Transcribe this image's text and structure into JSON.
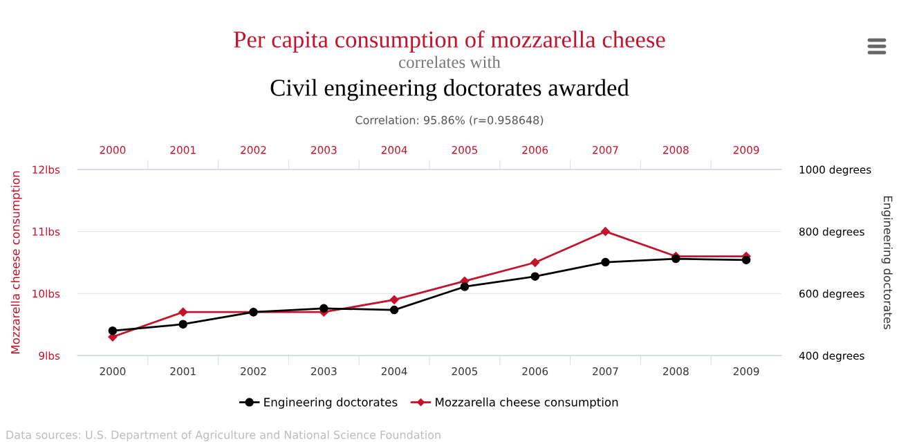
{
  "chart_data": {
    "type": "line",
    "title": "Per capita consumption of mozzarella cheese",
    "subtitle": "correlates with",
    "annotations": [
      "Civil engineering doctorates awarded",
      "Correlation: 95.86% (r=0.958648)",
      "Data sources: U.S. Department of Agriculture and National Science Foundation"
    ],
    "ylabel": "Mozzarella cheese consumption",
    "y2label": "Engineering doctorates",
    "categories": [
      "2000",
      "2001",
      "2002",
      "2003",
      "2004",
      "2005",
      "2006",
      "2007",
      "2008",
      "2009"
    ],
    "series": [
      {
        "name": "Engineering doctorates",
        "color": "#000000",
        "axis": "y2",
        "marker": "circle",
        "values": [
          480,
          501,
          540,
          552,
          547,
          622,
          655,
          701,
          712,
          708
        ]
      },
      {
        "name": "Mozzarella cheese consumption",
        "color": "#c3142d",
        "axis": "y",
        "marker": "diamond",
        "values": [
          9.3,
          9.7,
          9.7,
          9.7,
          9.9,
          10.2,
          10.5,
          11,
          10.6,
          10.6
        ]
      }
    ],
    "ylim": [
      9,
      12
    ],
    "yticks": [
      {
        "value": 9,
        "label": "9lbs"
      },
      {
        "value": 10,
        "label": "10lbs"
      },
      {
        "value": 11,
        "label": "11lbs"
      },
      {
        "value": 12,
        "label": "12lbs"
      }
    ],
    "y2lim": [
      400,
      1000
    ],
    "y2ticks": [
      {
        "value": 400,
        "label": "400 degrees"
      },
      {
        "value": 600,
        "label": "600 degrees"
      },
      {
        "value": 800,
        "label": "800 degrees"
      },
      {
        "value": 1000,
        "label": "1000 degrees"
      }
    ],
    "grid": "y",
    "legend": "bottom"
  }
}
